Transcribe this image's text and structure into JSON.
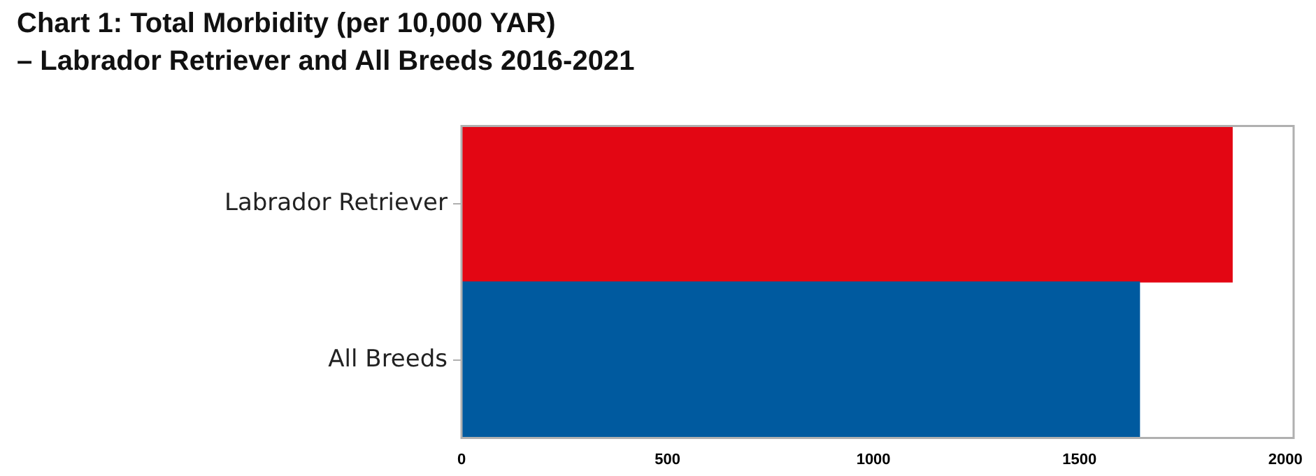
{
  "chart_data": {
    "type": "bar",
    "orientation": "horizontal",
    "title": "Chart 1: Total Morbidity (per 10,000 YAR)\n–  Labrador Retriever and All Breeds 2016-2021",
    "categories": [
      "Labrador Retriever",
      "All Breeds"
    ],
    "values": [
      1871,
      1646
    ],
    "colors": [
      "#e30613",
      "#005a9f"
    ],
    "xlim": [
      0,
      2020
    ],
    "xticks": [
      0,
      500,
      1000,
      1500,
      2000
    ],
    "grid": false,
    "legend": false
  }
}
